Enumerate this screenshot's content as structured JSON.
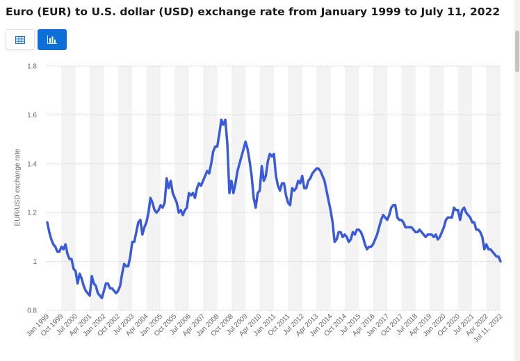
{
  "header": {
    "title": "Euro (EUR) to U.S. dollar (USD) exchange rate from January 1999 to July 11, 2022"
  },
  "toolbar": {
    "table_icon": "table-icon",
    "chart_icon": "bar-chart-icon",
    "active": "chart"
  },
  "colors": {
    "line": "#3a5bd9",
    "accent": "#0f6fd8",
    "band": "#f3f3f3",
    "grid": "#c8c8c8"
  },
  "chart_data": {
    "type": "line",
    "title": "Euro (EUR) to U.S. dollar (USD) exchange rate from January 1999 to July 11, 2022",
    "xlabel": "",
    "ylabel": "EUR/USD exchange rate",
    "ylim": [
      0.8,
      1.8
    ],
    "yticks": [
      "0.8",
      "1",
      "1.2",
      "1.4",
      "1.6",
      "1.8"
    ],
    "grid": true,
    "x_tick_labels": [
      "Jan 1999",
      "Oct 1999",
      "Jul 2000",
      "Apr 2001",
      "Jan 2002",
      "Oct 2002",
      "Jul 2003",
      "Apr 2004",
      "Jan 2005",
      "Oct 2005",
      "Jul 2006",
      "Apr 2007",
      "Jan 2008",
      "Oct 2008",
      "Jul 2009",
      "Apr 2010",
      "Jan 2011",
      "Oct 2011",
      "Jul 2012",
      "Apr 2013",
      "Jan 2014",
      "Oct 2014",
      "Jul 2015",
      "Apr 2016",
      "Jan 2017",
      "Oct 2017",
      "Jul 2018",
      "Apr 2019",
      "Jan 2020",
      "Oct 2020",
      "Jul 2021",
      "Apr 2022",
      "Jul 11, 2022"
    ],
    "series": [
      {
        "values": [
          1.16,
          1.12,
          1.09,
          1.07,
          1.06,
          1.04,
          1.04,
          1.06,
          1.05,
          1.07,
          1.03,
          1.01,
          1.01,
          0.97,
          0.96,
          0.91,
          0.95,
          0.93,
          0.9,
          0.88,
          0.87,
          0.86,
          0.94,
          0.91,
          0.9,
          0.87,
          0.86,
          0.85,
          0.88,
          0.91,
          0.91,
          0.89,
          0.89,
          0.88,
          0.87,
          0.88,
          0.9,
          0.95,
          0.99,
          0.98,
          0.98,
          1.02,
          1.08,
          1.08,
          1.12,
          1.16,
          1.17,
          1.11,
          1.14,
          1.16,
          1.2,
          1.26,
          1.24,
          1.21,
          1.2,
          1.21,
          1.23,
          1.22,
          1.24,
          1.34,
          1.3,
          1.33,
          1.28,
          1.26,
          1.24,
          1.2,
          1.21,
          1.19,
          1.21,
          1.22,
          1.28,
          1.27,
          1.28,
          1.26,
          1.3,
          1.32,
          1.31,
          1.33,
          1.35,
          1.37,
          1.36,
          1.4,
          1.45,
          1.47,
          1.47,
          1.52,
          1.58,
          1.56,
          1.58,
          1.48,
          1.28,
          1.33,
          1.28,
          1.32,
          1.37,
          1.4,
          1.43,
          1.46,
          1.49,
          1.46,
          1.41,
          1.35,
          1.26,
          1.22,
          1.28,
          1.29,
          1.39,
          1.33,
          1.35,
          1.41,
          1.44,
          1.43,
          1.44,
          1.35,
          1.31,
          1.29,
          1.32,
          1.32,
          1.27,
          1.24,
          1.23,
          1.3,
          1.29,
          1.3,
          1.33,
          1.32,
          1.35,
          1.3,
          1.3,
          1.33,
          1.34,
          1.36,
          1.37,
          1.38,
          1.38,
          1.37,
          1.35,
          1.33,
          1.29,
          1.25,
          1.21,
          1.16,
          1.08,
          1.09,
          1.12,
          1.12,
          1.1,
          1.11,
          1.1,
          1.08,
          1.09,
          1.12,
          1.11,
          1.13,
          1.13,
          1.12,
          1.1,
          1.07,
          1.05,
          1.06,
          1.06,
          1.07,
          1.09,
          1.11,
          1.14,
          1.17,
          1.19,
          1.18,
          1.17,
          1.19,
          1.22,
          1.23,
          1.23,
          1.18,
          1.17,
          1.17,
          1.16,
          1.14,
          1.14,
          1.14,
          1.14,
          1.13,
          1.12,
          1.12,
          1.13,
          1.12,
          1.11,
          1.1,
          1.11,
          1.11,
          1.11,
          1.1,
          1.11,
          1.09,
          1.1,
          1.12,
          1.14,
          1.17,
          1.18,
          1.18,
          1.18,
          1.22,
          1.21,
          1.21,
          1.17,
          1.21,
          1.22,
          1.2,
          1.19,
          1.18,
          1.16,
          1.16,
          1.13,
          1.13,
          1.12,
          1.1,
          1.05,
          1.07,
          1.05,
          1.05,
          1.04,
          1.03,
          1.02,
          1.02,
          1.0
        ]
      }
    ]
  }
}
